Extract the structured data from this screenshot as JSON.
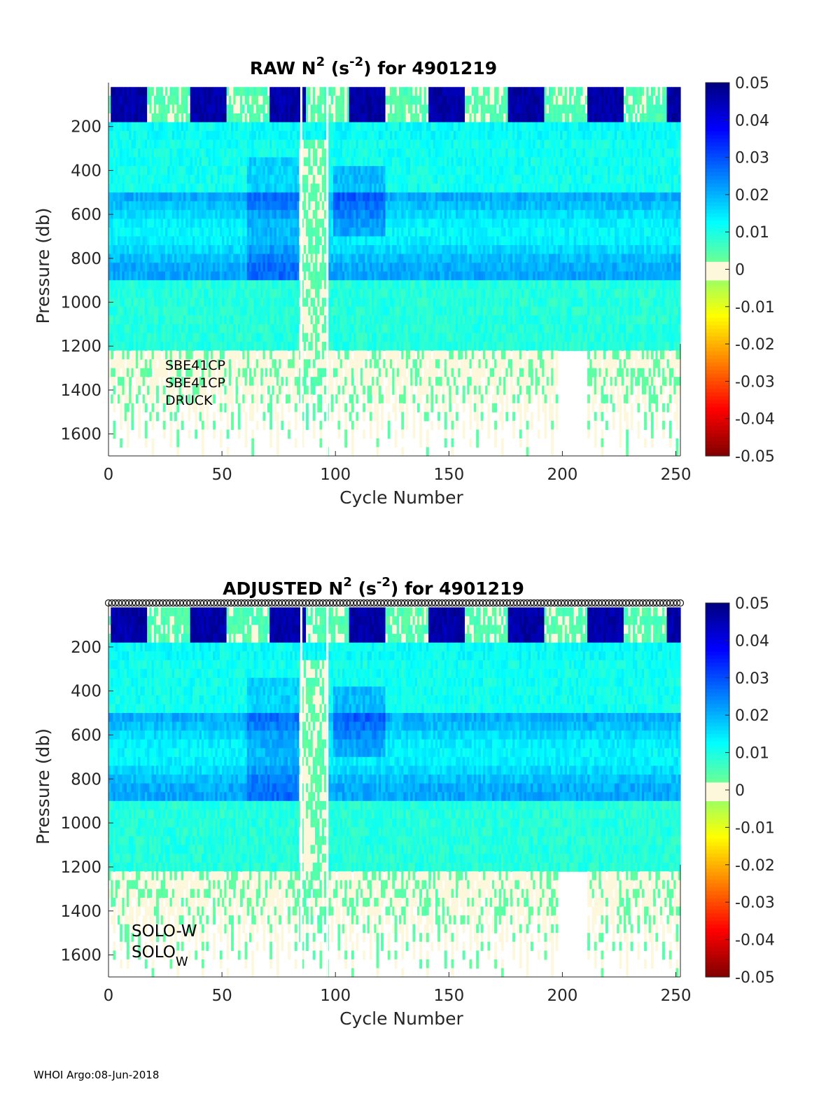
{
  "footer": "WHOI Argo:08-Jun-2018",
  "chart_data": [
    {
      "type": "heatmap",
      "title": {
        "main": "RAW N",
        "sup1": "2",
        "mid": " (s",
        "sup2": "-2",
        "tail": ") for 4901219"
      },
      "xlabel": "Cycle Number",
      "ylabel": "Pressure (db)",
      "xlim": [
        0,
        252
      ],
      "ylim": [
        1700,
        0
      ],
      "xticks": [
        0,
        50,
        100,
        150,
        200,
        250
      ],
      "yticks": [
        200,
        400,
        600,
        800,
        1000,
        1200,
        1400,
        1600
      ],
      "colorbar": {
        "range": [
          -0.05,
          0.05
        ],
        "ticks": [
          "0.05",
          "0.04",
          "0.03",
          "0.02",
          "0.01",
          "0",
          "-0.01",
          "-0.02",
          "-0.03",
          "-0.04",
          "-0.05"
        ]
      },
      "annotations": [
        "SBE41CP",
        "SBE41CP",
        "DRUCK"
      ],
      "gaps": [
        84.5,
        96
      ],
      "deep_limit_db": 1200
    },
    {
      "type": "heatmap",
      "title": {
        "main": "ADJUSTED N",
        "sup1": "2",
        "mid": " (s",
        "sup2": "-2",
        "tail": ") for 4901219"
      },
      "xlabel": "Cycle Number",
      "ylabel": "Pressure (db)",
      "xlim": [
        0,
        252
      ],
      "ylim": [
        1700,
        0
      ],
      "xticks": [
        0,
        50,
        100,
        150,
        200,
        250
      ],
      "yticks": [
        200,
        400,
        600,
        800,
        1000,
        1200,
        1400,
        1600
      ],
      "colorbar": {
        "range": [
          -0.05,
          0.05
        ],
        "ticks": [
          "0.05",
          "0.04",
          "0.03",
          "0.02",
          "0.01",
          "0",
          "-0.01",
          "-0.02",
          "-0.03",
          "-0.04",
          "-0.05"
        ]
      },
      "annotations": [
        "SOLO-W",
        "SOLO"
      ],
      "annotation_sub": "W",
      "gaps": [
        84.5,
        96
      ],
      "deep_limit_db": 1200,
      "flag_markers": true
    }
  ],
  "colors": {
    "axis": "#262626",
    "deep": "#e6f9ec"
  }
}
